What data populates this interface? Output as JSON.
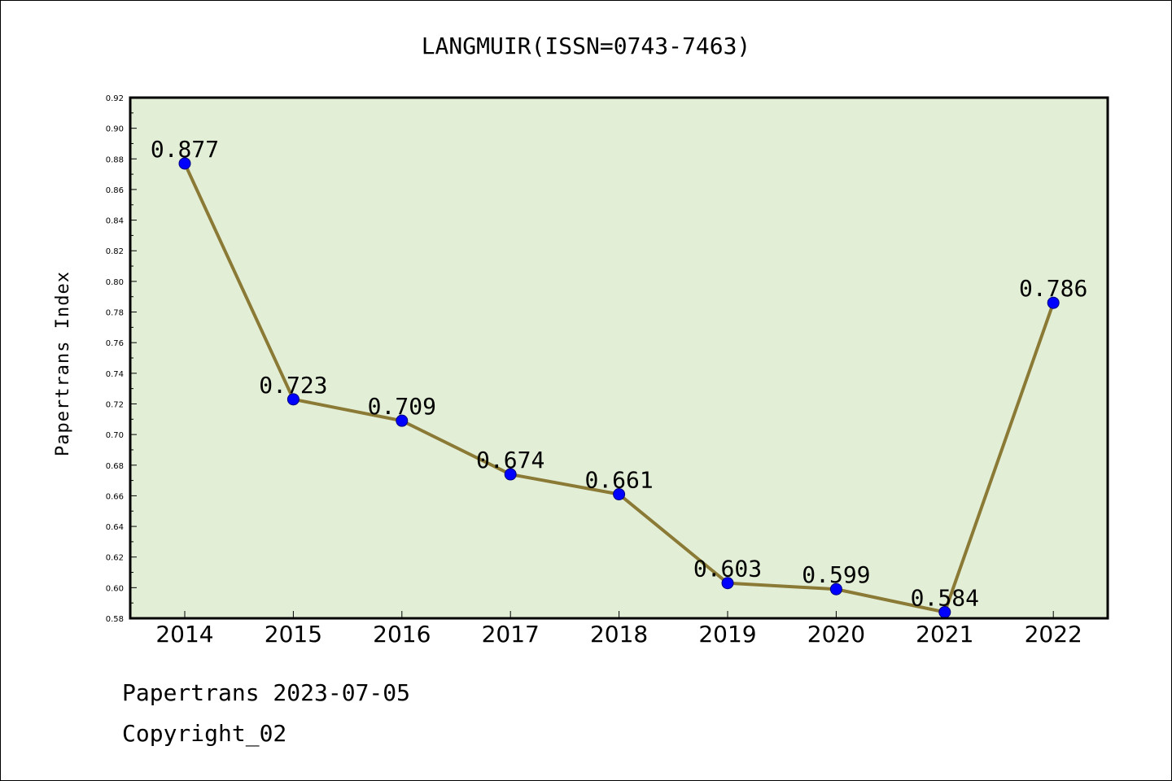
{
  "chart_data": {
    "type": "line",
    "title": "LANGMUIR(ISSN=0743-7463)",
    "xlabel": "",
    "ylabel": "Papertrans Index",
    "categories": [
      "2014",
      "2015",
      "2016",
      "2017",
      "2018",
      "2019",
      "2020",
      "2021",
      "2022"
    ],
    "values": [
      0.877,
      0.723,
      0.709,
      0.674,
      0.661,
      0.603,
      0.599,
      0.584,
      0.786
    ],
    "data_labels": [
      "0.877",
      "0.723",
      "0.709",
      "0.674",
      "0.661",
      "0.603",
      "0.599",
      "0.584",
      "0.786"
    ],
    "ylim": [
      0.58,
      0.92
    ],
    "yticks": [
      "0.58",
      "0.60",
      "0.62",
      "0.64",
      "0.66",
      "0.68",
      "0.70",
      "0.72",
      "0.74",
      "0.76",
      "0.78",
      "0.80",
      "0.82",
      "0.84",
      "0.86",
      "0.88",
      "0.90",
      "0.92"
    ],
    "grid": false,
    "legend": "none",
    "colors": {
      "plot_background": "#e2efd6",
      "line": "#8b7a35",
      "marker": "#0000ff",
      "marker_edge": "#000080"
    }
  },
  "footer": {
    "line1": "Papertrans 2023-07-05",
    "line2": "Copyright_02"
  }
}
